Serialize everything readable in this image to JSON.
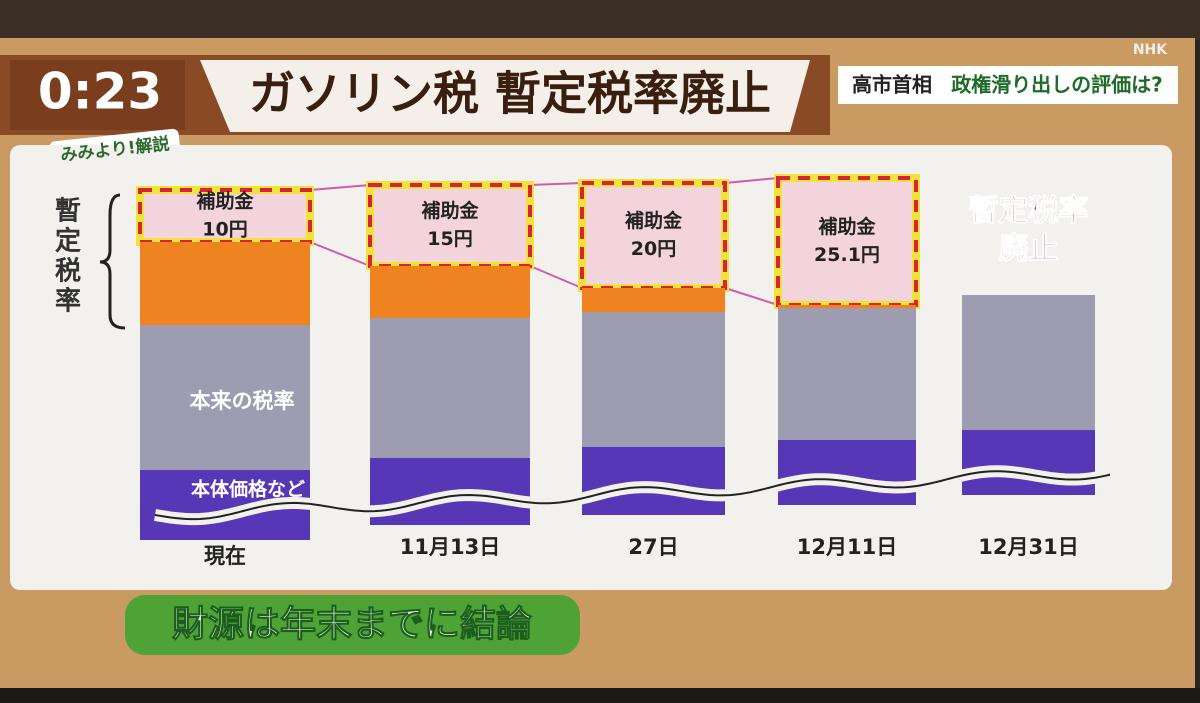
{
  "clock": "0:23",
  "headline": "ガソリン税 暫定税率廃止",
  "topic": {
    "prefix": "高市首相",
    "text": "政権滑り出しの評価は?"
  },
  "corner": "みみより!解説",
  "logo": "NHK",
  "bracket_label": "暫定税率",
  "segment_labels": {
    "base_tax": "本来の税率",
    "base_price": "本体価格など"
  },
  "stages": [
    {
      "date": "現在",
      "subsidy": "補助金",
      "amount": "10円"
    },
    {
      "date": "11月13日",
      "subsidy": "補助金",
      "amount": "15円"
    },
    {
      "date": "27日",
      "subsidy": "補助金",
      "amount": "20円"
    },
    {
      "date": "12月11日",
      "subsidy": "補助金",
      "amount": "25.1円"
    },
    {
      "date": "12月31日",
      "note": [
        "暫定税率",
        "廃止"
      ]
    }
  ],
  "caption": "財源は年末までに結論"
}
